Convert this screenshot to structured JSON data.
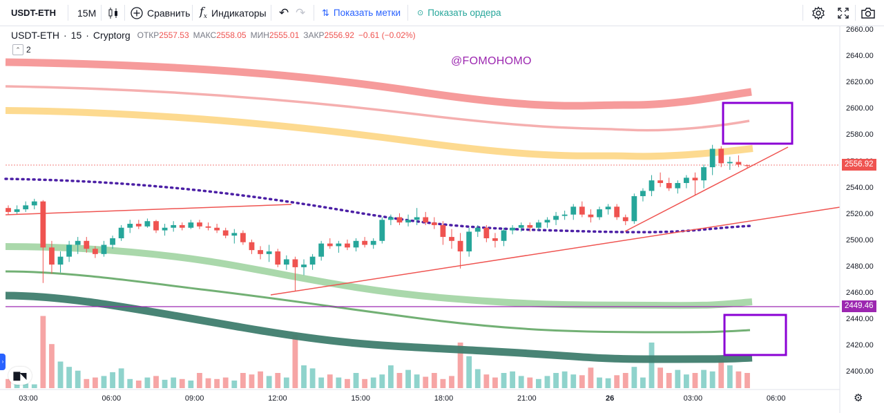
{
  "toolbar": {
    "symbol": "USDT-ETH",
    "interval": "15M",
    "compare_label": "Сравнить",
    "indicators_label": "Индикаторы",
    "show_marks_label": "Показать метки",
    "show_orders_label": "Показать ордера"
  },
  "legend": {
    "symbol": "USDT-ETH",
    "interval": "15",
    "exchange": "Cryptorg",
    "open_label": "ОТКР",
    "open_value": "2557.53",
    "high_label": "МАКС",
    "high_value": "2558.05",
    "low_label": "МИН",
    "low_value": "2555.01",
    "close_label": "ЗАКР",
    "close_value": "2556.92",
    "change": "−0.61 (−0.02%)",
    "collapsed_count": "2"
  },
  "watermark": "@FOMOHOMO",
  "price_axis": {
    "ticks": [
      "2660.00",
      "2640.00",
      "2620.00",
      "2600.00",
      "2580.00",
      "2560.00",
      "2540.00",
      "2520.00",
      "2500.00",
      "2480.00",
      "2460.00",
      "2440.00",
      "2420.00",
      "2400.00"
    ],
    "current_price": "2556.92",
    "hline_price": "2449.46"
  },
  "time_axis": {
    "ticks": [
      "03:00",
      "06:00",
      "09:00",
      "12:00",
      "15:00",
      "18:00",
      "21:00",
      "26",
      "03:00",
      "06:00"
    ]
  },
  "colors": {
    "up": "#26a69a",
    "down": "#ef5350",
    "purple": "#9c27b0",
    "box": "#8a00d4"
  },
  "chart_data": {
    "type": "candlestick",
    "symbol": "USDT-ETH",
    "interval": "15",
    "y_range": [
      2390,
      2665
    ],
    "candles_ohlc": [
      [
        2525,
        2527,
        2520,
        2522
      ],
      [
        2522,
        2527,
        2520,
        2524
      ],
      [
        2524,
        2530,
        2522,
        2527
      ],
      [
        2527,
        2532,
        2524,
        2530
      ],
      [
        2530,
        2531,
        2468,
        2495
      ],
      [
        2495,
        2500,
        2475,
        2482
      ],
      [
        2482,
        2492,
        2476,
        2488
      ],
      [
        2488,
        2500,
        2484,
        2497
      ],
      [
        2497,
        2503,
        2490,
        2500
      ],
      [
        2500,
        2503,
        2491,
        2494
      ],
      [
        2494,
        2496,
        2487,
        2490
      ],
      [
        2490,
        2500,
        2488,
        2497
      ],
      [
        2497,
        2504,
        2494,
        2502
      ],
      [
        2502,
        2512,
        2500,
        2510
      ],
      [
        2510,
        2516,
        2506,
        2513
      ],
      [
        2513,
        2516,
        2509,
        2511
      ],
      [
        2511,
        2517,
        2510,
        2515
      ],
      [
        2515,
        2516,
        2506,
        2508
      ],
      [
        2508,
        2513,
        2504,
        2510
      ],
      [
        2510,
        2515,
        2507,
        2512
      ],
      [
        2512,
        2514,
        2508,
        2510
      ],
      [
        2510,
        2516,
        2509,
        2514
      ],
      [
        2514,
        2516,
        2509,
        2511
      ],
      [
        2511,
        2514,
        2508,
        2510
      ],
      [
        2510,
        2513,
        2506,
        2508
      ],
      [
        2508,
        2510,
        2502,
        2504
      ],
      [
        2504,
        2509,
        2498,
        2506
      ],
      [
        2506,
        2508,
        2497,
        2499
      ],
      [
        2499,
        2501,
        2490,
        2493
      ],
      [
        2493,
        2496,
        2486,
        2490
      ],
      [
        2490,
        2497,
        2484,
        2492
      ],
      [
        2492,
        2494,
        2480,
        2482
      ],
      [
        2482,
        2489,
        2478,
        2486
      ],
      [
        2486,
        2488,
        2462,
        2480
      ],
      [
        2480,
        2486,
        2474,
        2482
      ],
      [
        2482,
        2490,
        2478,
        2488
      ],
      [
        2488,
        2500,
        2485,
        2498
      ],
      [
        2498,
        2502,
        2494,
        2496
      ],
      [
        2496,
        2500,
        2491,
        2498
      ],
      [
        2498,
        2501,
        2493,
        2495
      ],
      [
        2495,
        2502,
        2492,
        2500
      ],
      [
        2500,
        2503,
        2495,
        2497
      ],
      [
        2497,
        2502,
        2494,
        2500
      ],
      [
        2500,
        2518,
        2498,
        2516
      ],
      [
        2516,
        2520,
        2512,
        2518
      ],
      [
        2518,
        2521,
        2512,
        2514
      ],
      [
        2514,
        2520,
        2511,
        2516
      ],
      [
        2516,
        2525,
        2512,
        2518
      ],
      [
        2518,
        2522,
        2512,
        2514
      ],
      [
        2514,
        2518,
        2509,
        2512
      ],
      [
        2512,
        2515,
        2497,
        2503
      ],
      [
        2503,
        2509,
        2494,
        2500
      ],
      [
        2500,
        2506,
        2479,
        2492
      ],
      [
        2492,
        2510,
        2488,
        2507
      ],
      [
        2507,
        2512,
        2503,
        2510
      ],
      [
        2510,
        2512,
        2499,
        2502
      ],
      [
        2502,
        2506,
        2495,
        2500
      ],
      [
        2500,
        2510,
        2496,
        2508
      ],
      [
        2508,
        2512,
        2505,
        2510
      ],
      [
        2510,
        2514,
        2507,
        2512
      ],
      [
        2512,
        2514,
        2507,
        2510
      ],
      [
        2510,
        2516,
        2508,
        2514
      ],
      [
        2514,
        2518,
        2510,
        2516
      ],
      [
        2516,
        2522,
        2512,
        2519
      ],
      [
        2519,
        2523,
        2516,
        2520
      ],
      [
        2520,
        2528,
        2516,
        2526
      ],
      [
        2526,
        2530,
        2518,
        2520
      ],
      [
        2520,
        2524,
        2514,
        2518
      ],
      [
        2518,
        2526,
        2516,
        2524
      ],
      [
        2524,
        2528,
        2520,
        2526
      ],
      [
        2526,
        2528,
        2516,
        2518
      ],
      [
        2518,
        2520,
        2512,
        2515
      ],
      [
        2515,
        2536,
        2513,
        2534
      ],
      [
        2534,
        2540,
        2530,
        2538
      ],
      [
        2538,
        2550,
        2534,
        2546
      ],
      [
        2546,
        2552,
        2541,
        2544
      ],
      [
        2544,
        2548,
        2538,
        2540
      ],
      [
        2540,
        2546,
        2536,
        2544
      ],
      [
        2544,
        2550,
        2540,
        2548
      ],
      [
        2548,
        2552,
        2535,
        2546
      ],
      [
        2546,
        2558,
        2540,
        2556
      ],
      [
        2556,
        2573,
        2550,
        2570
      ],
      [
        2570,
        2572,
        2556,
        2559
      ],
      [
        2559,
        2564,
        2554,
        2560
      ],
      [
        2560,
        2565,
        2556,
        2558
      ],
      [
        2557.53,
        2558.05,
        2555.01,
        2556.92
      ]
    ],
    "volume": [
      12,
      9,
      6,
      5,
      95,
      58,
      35,
      28,
      23,
      12,
      14,
      16,
      21,
      26,
      12,
      10,
      14,
      16,
      11,
      14,
      12,
      10,
      20,
      13,
      12,
      14,
      10,
      20,
      18,
      22,
      16,
      20,
      14,
      70,
      30,
      26,
      14,
      18,
      14,
      12,
      20,
      12,
      14,
      18,
      30,
      20,
      24,
      18,
      15,
      20,
      12,
      16,
      60,
      42,
      25,
      18,
      14,
      20,
      22,
      16,
      14,
      12,
      16,
      20,
      22,
      18,
      17,
      27,
      14,
      13,
      17,
      20,
      28,
      14,
      60,
      27,
      20,
      24,
      18,
      20,
      24,
      22,
      38,
      30,
      22,
      20
    ],
    "annotations": [
      "trendlines",
      "moving averages",
      "horizontal line 2449.46"
    ]
  }
}
